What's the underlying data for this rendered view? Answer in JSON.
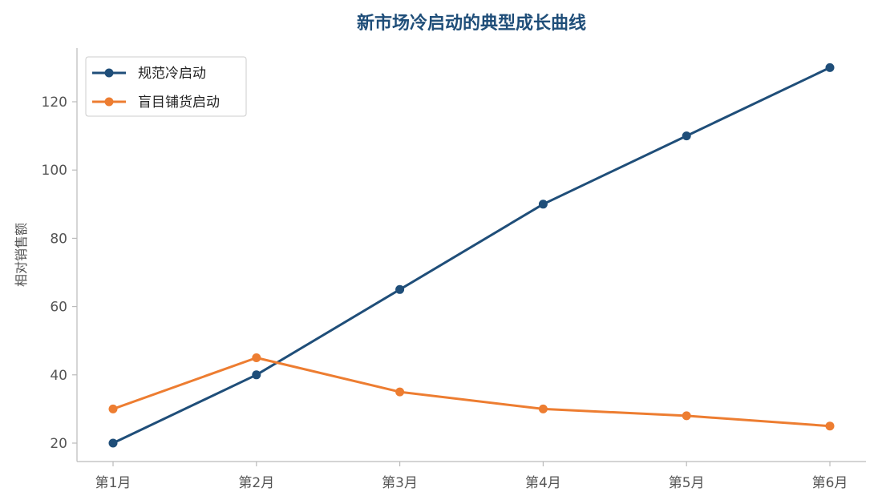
{
  "chart_data": {
    "type": "line",
    "title": "新市场冷启动的典型成长曲线",
    "xlabel": "",
    "ylabel": "相对销售额",
    "categories": [
      "第1月",
      "第2月",
      "第3月",
      "第4月",
      "第5月",
      "第6月"
    ],
    "y_ticks": [
      20,
      40,
      60,
      80,
      100,
      120
    ],
    "ylim": [
      14.5,
      135.5
    ],
    "grid": false,
    "legend_position": "top-left",
    "series": [
      {
        "name": "规范冷启动",
        "color": "#1f4e79",
        "values": [
          20,
          40,
          65,
          90,
          110,
          130
        ]
      },
      {
        "name": "盲目铺货启动",
        "color": "#ed7d31",
        "values": [
          30,
          45,
          35,
          30,
          28,
          25
        ]
      }
    ]
  },
  "colors": {
    "title": "#1f4e79",
    "axis": "#bbbbbb"
  }
}
